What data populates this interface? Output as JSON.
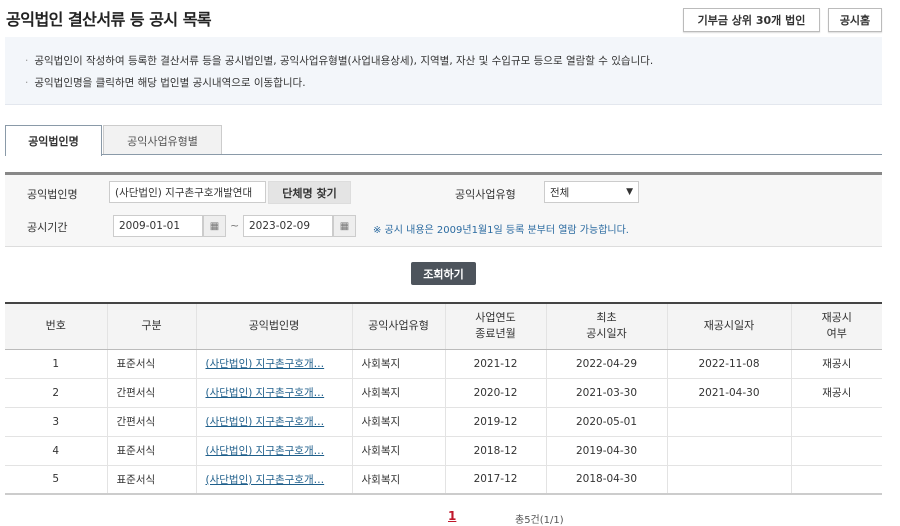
{
  "header": {
    "title": "공익법인 결산서류 등 공시 목록",
    "btn_top30": "기부금 상위 30개 법인",
    "btn_home": "공시홈"
  },
  "info": [
    "공익법인이 작성하여 등록한 결산서류 등을 공시법인별, 공익사업유형별(사업내용상세), 지역별, 자산 및 수입규모 등으로 열람할 수 있습니다.",
    "공익법인명을 클릭하면 해당 법인별 공시내역으로 이동합니다."
  ],
  "tabs": [
    {
      "label": "공익법인명",
      "active": true
    },
    {
      "label": "공익사업유형별",
      "active": false
    }
  ],
  "search": {
    "name_label": "공익법인명",
    "name_value": "(사단법인) 지구촌구호개발연대",
    "find_btn": "단체명 찾기",
    "type_label": "공익사업유형",
    "type_value": "전체",
    "period_label": "공시기간",
    "date_from": "2009-01-01",
    "tilde": "~",
    "date_to": "2023-02-09",
    "note": "※ 공시 내용은 2009년1월1일 등록 분부터 열람 가능합니다.",
    "submit": "조회하기"
  },
  "table": {
    "headers": [
      "번호",
      "구분",
      "공익법인명",
      "공익사업유형",
      "사업연도\n종료년월",
      "최초\n공시일자",
      "재공시일자",
      "재공시\n여부"
    ],
    "rows": [
      [
        "1",
        "표준서식",
        "(사단법인) 지구촌구호개…",
        "사회복지",
        "2021-12",
        "2022-04-29",
        "2022-11-08",
        "재공시"
      ],
      [
        "2",
        "간편서식",
        "(사단법인) 지구촌구호개…",
        "사회복지",
        "2020-12",
        "2021-03-30",
        "2021-04-30",
        "재공시"
      ],
      [
        "3",
        "간편서식",
        "(사단법인) 지구촌구호개…",
        "사회복지",
        "2019-12",
        "2020-05-01",
        "",
        ""
      ],
      [
        "4",
        "표준서식",
        "(사단법인) 지구촌구호개…",
        "사회복지",
        "2018-12",
        "2019-04-30",
        "",
        ""
      ],
      [
        "5",
        "표준서식",
        "(사단법인) 지구촌구호개…",
        "사회복지",
        "2017-12",
        "2018-04-30",
        "",
        ""
      ]
    ]
  },
  "pagination": {
    "current": "1",
    "total": "총5건(1/1)"
  }
}
